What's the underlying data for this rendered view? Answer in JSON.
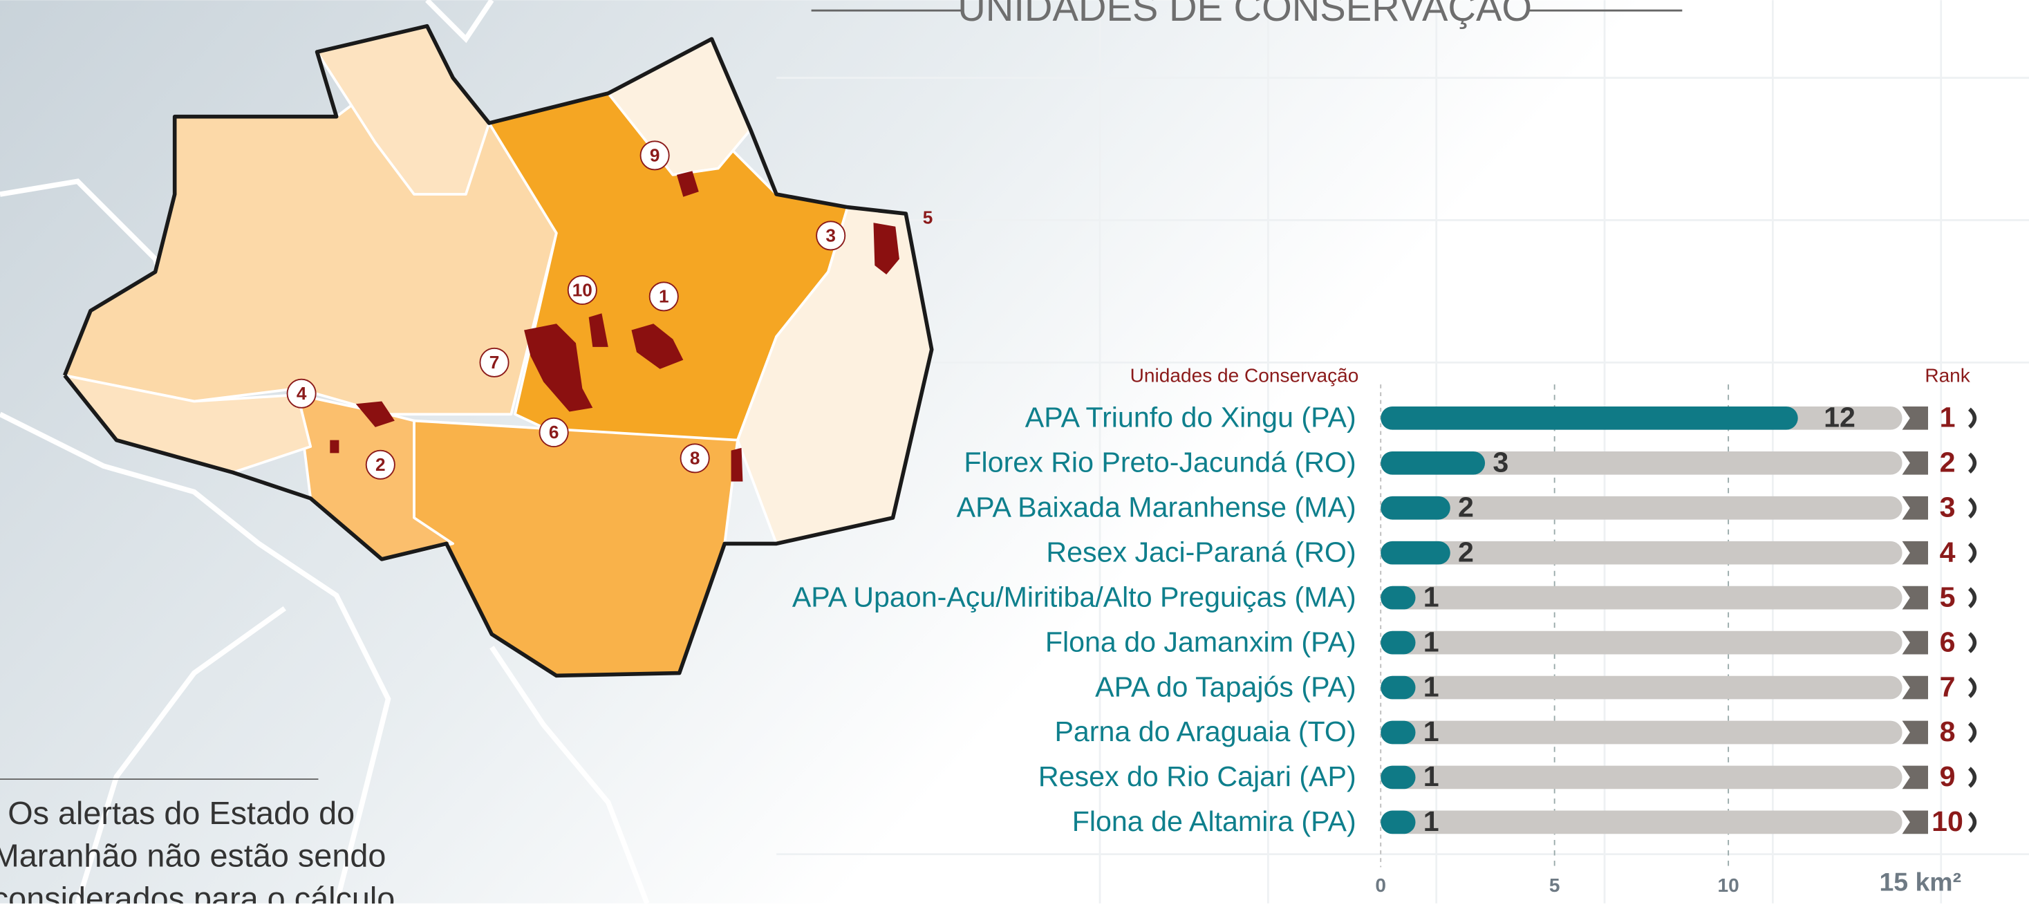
{
  "chart_data": {
    "type": "bar",
    "title": "UNIDADES DE CONSERVAÇÃO",
    "category_header": "Unidades de Conservação",
    "rank_header": "Rank",
    "categories": [
      "APA Triunfo do Xingu (PA)",
      "Florex Rio Preto-Jacundá (RO)",
      "APA Baixada Maranhense (MA)",
      "Resex Jaci-Paraná (RO)",
      "APA Upaon-Açu/Miritiba/Alto Preguiças (MA)",
      "Flona do Jamanxim (PA)",
      "APA do Tapajós (PA)",
      "Parna do Araguaia (TO)",
      "Resex do Rio Cajari (AP)",
      "Flona de Altamira (PA)"
    ],
    "values": [
      12,
      3,
      2,
      2,
      1,
      1,
      1,
      1,
      1,
      1
    ],
    "ranks": [
      1,
      2,
      3,
      4,
      5,
      6,
      7,
      8,
      9,
      10
    ],
    "color": "#0f7a86",
    "xlim": [
      0,
      15
    ],
    "xticks": [
      0,
      5,
      10,
      {
        "value": 15,
        "label": "15 km²"
      }
    ],
    "grid": true
  },
  "map_labels": [
    "9",
    "5",
    "3",
    "10",
    "1",
    "7",
    "4",
    "2",
    "6",
    "8"
  ],
  "note_lines": [
    "Os alertas do Estado do",
    "Maranhão não estão sendo",
    "considerados para o cálculo"
  ]
}
